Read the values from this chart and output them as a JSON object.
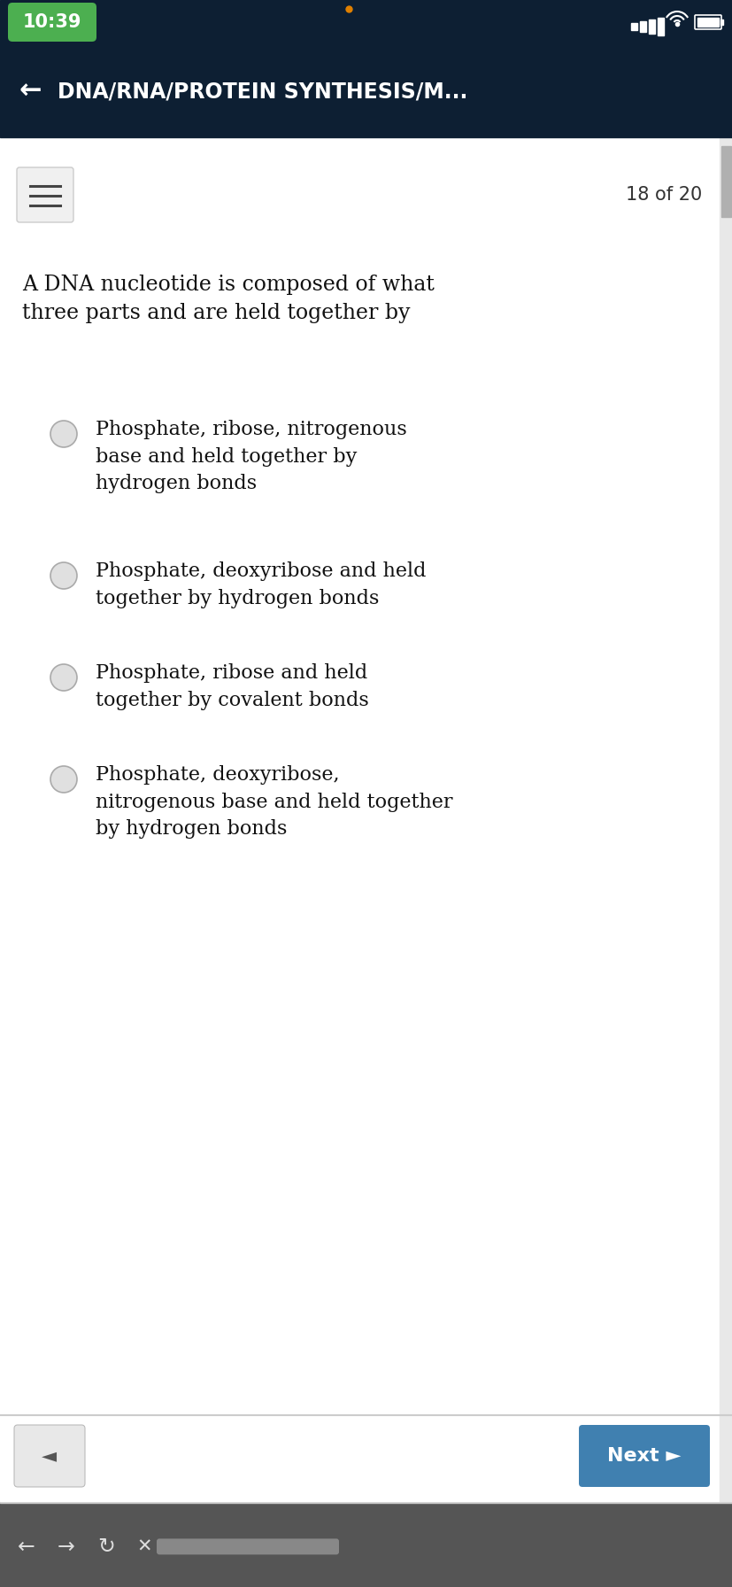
{
  "time": "10:39",
  "header_bg": "#0d1f33",
  "header_title": "←  DNA/RNA/PROTEIN SYNTHESIS/M...",
  "header_title_color": "#ffffff",
  "question_counter": "18 of 20",
  "question_text": "A DNA nucleotide is composed of what\nthree parts and are held together by",
  "options": [
    "Phosphate, ribose, nitrogenous\nbase and held together by\nhydrogen bonds",
    "Phosphate, deoxyribose and held\ntogether by hydrogen bonds",
    "Phosphate, ribose and held\ntogether by covalent bonds",
    "Phosphate, deoxyribose,\nnitrogenous base and held together\nby hydrogen bonds"
  ],
  "option_text_color": "#111111",
  "question_text_color": "#111111",
  "radio_edge": "#aaaaaa",
  "radio_fill": "#e0e0e0",
  "next_btn_color": "#4080b0",
  "next_btn_text": "Next ►",
  "back_btn_bg": "#e8e8e8",
  "back_btn_text": "◄",
  "time_bg": "#4caf50",
  "scrollbar_track": "#e0e0e0",
  "scrollbar_thumb": "#b0b0b0",
  "bottom_bar_bg": "#555555",
  "separator_color": "#cccccc",
  "status_bar_bg": "#0d1f33",
  "content_bg": "#ffffff",
  "top_strip_bg": "#f0f0f0",
  "orange_dot": "#e08000"
}
